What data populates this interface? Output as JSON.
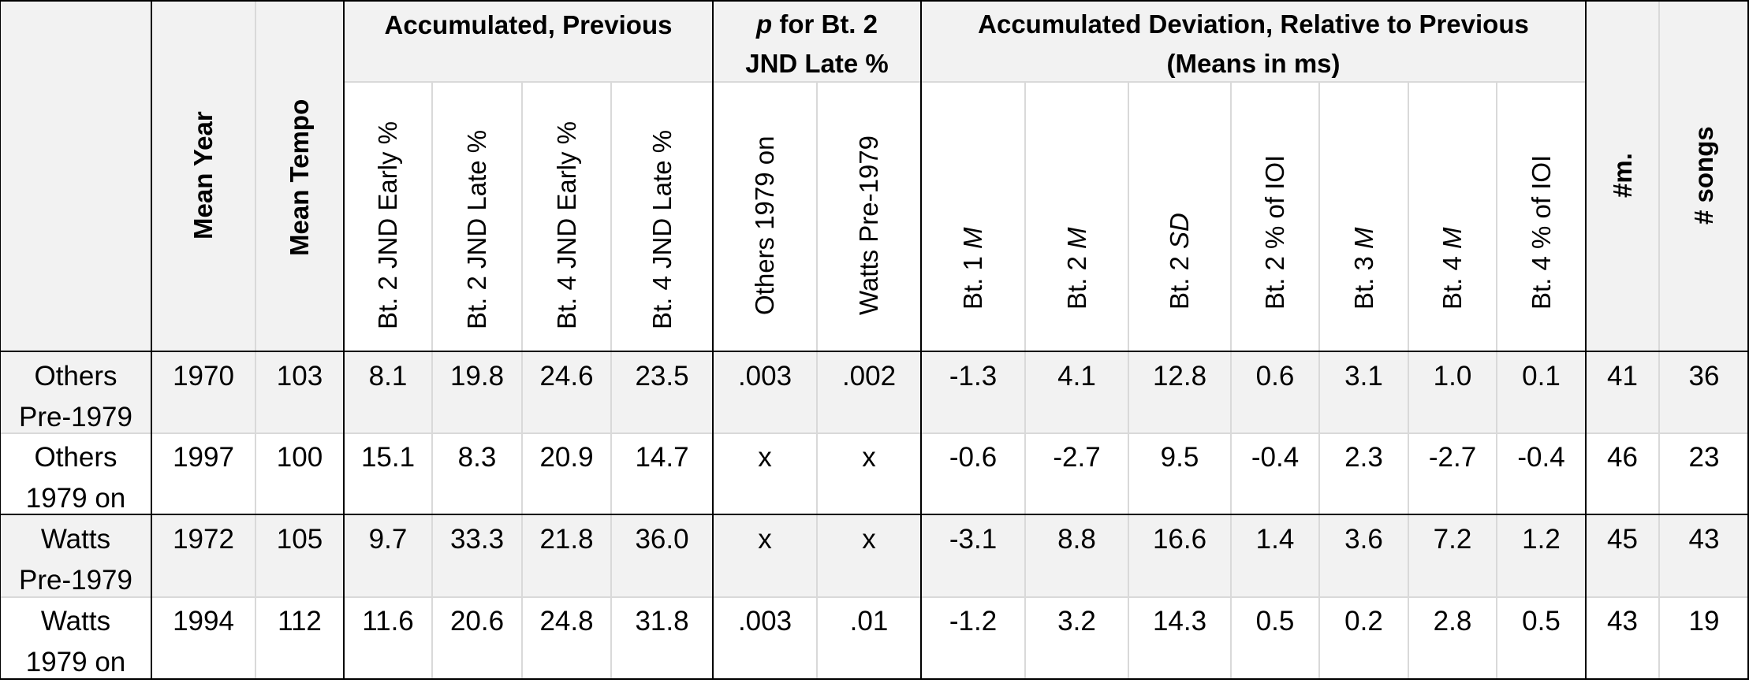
{
  "header": {
    "group_accumulated_previous": "Accumulated, Previous",
    "group_p_for_bt2": {
      "p": "p",
      "rest": " for Bt. 2",
      "line2": "JND Late %"
    },
    "group_accumulated_deviation": {
      "line1": "Accumulated Deviation, Relative to Previous",
      "line2": "(Means in ms)"
    },
    "columns": [
      {
        "key": "mean_year",
        "label": "Mean Year",
        "bold": true
      },
      {
        "key": "mean_tempo",
        "label": "Mean Tempo",
        "bold": true
      },
      {
        "key": "bt2_jnd_early",
        "label": "Bt. 2 JND Early %"
      },
      {
        "key": "bt2_jnd_late",
        "label": "Bt. 2 JND Late %"
      },
      {
        "key": "bt4_jnd_early",
        "label": "Bt. 4 JND Early %"
      },
      {
        "key": "bt4_jnd_late",
        "label": "Bt. 4 JND Late %"
      },
      {
        "key": "p_others_1979_on",
        "label": "Others 1979  on"
      },
      {
        "key": "p_watts_pre_1979",
        "label": "Watts Pre-1979"
      },
      {
        "key": "bt1_m",
        "label": "Bt. 1 ",
        "italic": "M"
      },
      {
        "key": "bt2_m",
        "label": "Bt. 2 ",
        "italic": "M"
      },
      {
        "key": "bt2_sd",
        "label": "Bt. 2 ",
        "italic": "SD"
      },
      {
        "key": "bt2_pct_ioi",
        "label": "Bt. 2 % of IOI"
      },
      {
        "key": "bt3_m",
        "label": "Bt. 3 ",
        "italic": "M"
      },
      {
        "key": "bt4_m",
        "label": "Bt. 4 ",
        "italic": "M"
      },
      {
        "key": "bt4_pct_ioi",
        "label": "Bt. 4 % of IOI"
      },
      {
        "key": "num_m",
        "label": "#m.",
        "bold": true
      },
      {
        "key": "num_songs",
        "label": "# songs",
        "bold": true
      }
    ]
  },
  "rows": [
    {
      "label1": "Others",
      "label2": "Pre-1979",
      "values": [
        "1970",
        "103",
        "8.1",
        "19.8",
        "24.6",
        "23.5",
        ".003",
        ".002",
        "-1.3",
        "4.1",
        "12.8",
        "0.6",
        "3.1",
        "1.0",
        "0.1",
        "41",
        "36"
      ]
    },
    {
      "label1": "Others",
      "label2": "1979 on",
      "values": [
        "1997",
        "100",
        "15.1",
        "8.3",
        "20.9",
        "14.7",
        "x",
        "x",
        "-0.6",
        "-2.7",
        "9.5",
        "-0.4",
        "2.3",
        "-2.7",
        "-0.4",
        "46",
        "23"
      ]
    },
    {
      "label1": "Watts",
      "label2": "Pre-1979",
      "values": [
        "1972",
        "105",
        "9.7",
        "33.3",
        "21.8",
        "36.0",
        "x",
        "x",
        "-3.1",
        "8.8",
        "16.6",
        "1.4",
        "3.6",
        "7.2",
        "1.2",
        "45",
        "43"
      ]
    },
    {
      "label1": "Watts",
      "label2": "1979 on",
      "values": [
        "1994",
        "112",
        "11.6",
        "20.6",
        "24.8",
        "31.8",
        ".003",
        ".01",
        "-1.2",
        "3.2",
        "14.3",
        "0.5",
        "0.2",
        "2.8",
        "0.5",
        "43",
        "19"
      ]
    }
  ]
}
